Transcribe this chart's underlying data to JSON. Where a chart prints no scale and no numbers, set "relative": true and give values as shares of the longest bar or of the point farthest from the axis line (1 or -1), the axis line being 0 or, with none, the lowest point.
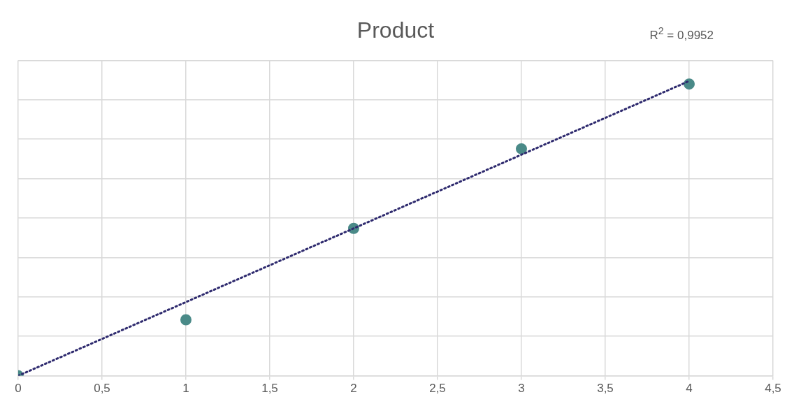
{
  "chart_data": {
    "type": "scatter",
    "title": "Product",
    "relative": true,
    "x": [
      0,
      1,
      2,
      3,
      4
    ],
    "xlim": [
      0,
      4.5
    ],
    "xticks": [
      0,
      {
        "value": 0.5,
        "label": "0,5"
      },
      1,
      {
        "value": 1.5,
        "label": "1,5"
      },
      2,
      {
        "value": 2.5,
        "label": "2,5"
      },
      3,
      {
        "value": 3.5,
        "label": "3,5"
      },
      4,
      {
        "value": 4.5,
        "label": "4,5"
      }
    ],
    "series": [
      {
        "color": "#4a8a88",
        "values": [
          0,
          0.19,
          0.5,
          0.77,
          0.99
        ],
        "marker": "circle"
      },
      {
        "type": "line",
        "color": "#2e2a6e",
        "x": [
          0,
          4
        ],
        "values": [
          0,
          1
        ],
        "marker": "none",
        "line_style": "dotted"
      }
    ],
    "annotations": [
      "R$^{2}$ = 0,9952"
    ],
    "grid": true,
    "legend": false
  }
}
